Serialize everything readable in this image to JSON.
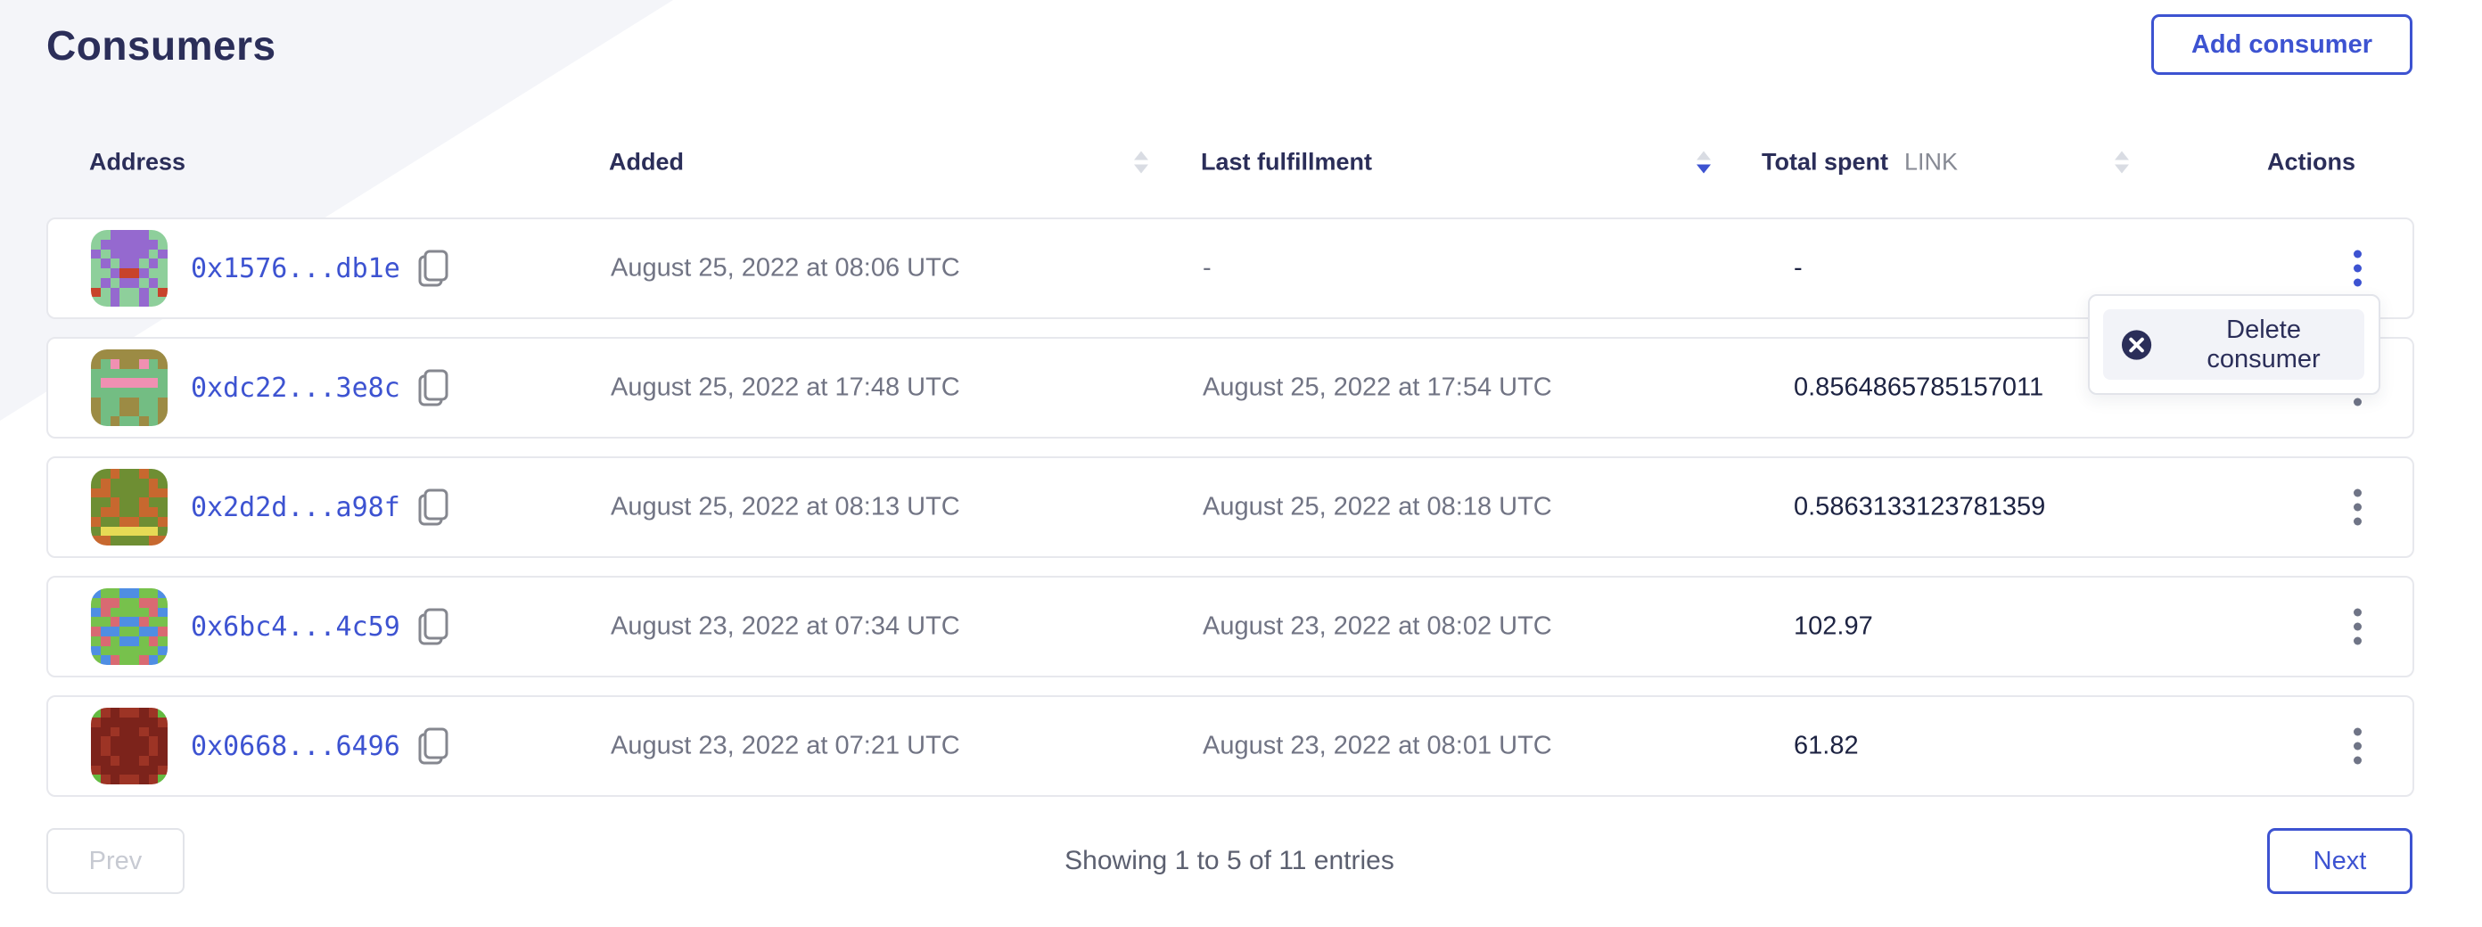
{
  "page": {
    "title": "Consumers"
  },
  "header": {
    "add_button_label": "Add consumer"
  },
  "colors": {
    "accent_blue": "#3d53d1",
    "navy": "#2b2e59",
    "muted_text": "#717484",
    "diagonal_band": "#f4f5f9"
  },
  "table": {
    "columns": {
      "address": "Address",
      "added": "Added",
      "last_fulfillment": "Last fulfillment",
      "total_spent": "Total spent",
      "total_spent_unit": "LINK",
      "actions": "Actions"
    },
    "sort": {
      "added": "none",
      "last_fulfillment": "desc",
      "total_spent": "none"
    },
    "rows": [
      {
        "address": "0x1576...db1e",
        "added": "August 25, 2022 at 08:06 UTC",
        "last_fulfillment": "-",
        "total_spent": "-",
        "menu_open": true,
        "identicon": {
          "bg": "#8ecf9b",
          "fg": "#9569cf",
          "spot": "#c8432b",
          "pattern": [
            "..####..",
            ".######.",
            "#.####.#",
            ".#.##.#.",
            "..#oo#..",
            ".#.##.#.",
            "o.#..#.o",
            "..#..#.."
          ]
        }
      },
      {
        "address": "0xdc22...3e8c",
        "added": "August 25, 2022 at 17:48 UTC",
        "last_fulfillment": "August 25, 2022 at 17:54 UTC",
        "total_spent": "0.8564865785157011",
        "menu_open": false,
        "identicon": {
          "bg": "#73bd83",
          "fg": "#9c8b44",
          "spot": "#f090b2",
          "pattern": [
            "########",
            "#.o##o.#",
            "........",
            ".oooooo.",
            "........",
            "#..##..#",
            "#..##..#",
            "#.#..#.#"
          ]
        }
      },
      {
        "address": "0x2d2d...a98f",
        "added": "August 25, 2022 at 08:13 UTC",
        "last_fulfillment": "August 25, 2022 at 08:18 UTC",
        "total_spent": "0.5863133123781359",
        "menu_open": false,
        "identicon": {
          "bg": "#c7682f",
          "fg": "#6e8e33",
          "spot": "#e6da55",
          "pattern": [
            "##.##.##",
            "#.####.#",
            "..####..",
            "##.##.##",
            "#..##..#",
            ".##..##.",
            "#oooooo#",
            "..####.."
          ]
        }
      },
      {
        "address": "0x6bc4...4c59",
        "added": "August 23, 2022 at 07:34 UTC",
        "last_fulfillment": "August 23, 2022 at 08:02 UTC",
        "total_spent": "102.97",
        "menu_open": false,
        "identicon": {
          "bg": "#4f8ee3",
          "fg": "#77c14c",
          "spot": "#d96a72",
          "pattern": [
            ".##..##.",
            "#oo##oo#",
            ".o####o.",
            "##o..o##",
            "o..##..o",
            "#o#..#o#",
            ".######.",
            "#.o##o.#"
          ]
        }
      },
      {
        "address": "0x0668...6496",
        "added": "August 23, 2022 at 07:21 UTC",
        "last_fulfillment": "August 23, 2022 at 08:01 UTC",
        "total_spent": "61.82",
        "menu_open": false,
        "identicon": {
          "bg": "#9d3425",
          "fg": "#7c231b",
          "spot": "#64ba41",
          "pattern": [
            "o.#..#.o",
            ".######.",
            "##.##.##",
            "#.####.#",
            "#.####.#",
            "##.##.##",
            ".######.",
            "o.#..#.o"
          ]
        }
      }
    ]
  },
  "menu": {
    "delete_label": "Delete consumer"
  },
  "pagination": {
    "prev_label": "Prev",
    "next_label": "Next",
    "summary": "Showing 1 to 5 of 11 entries"
  }
}
